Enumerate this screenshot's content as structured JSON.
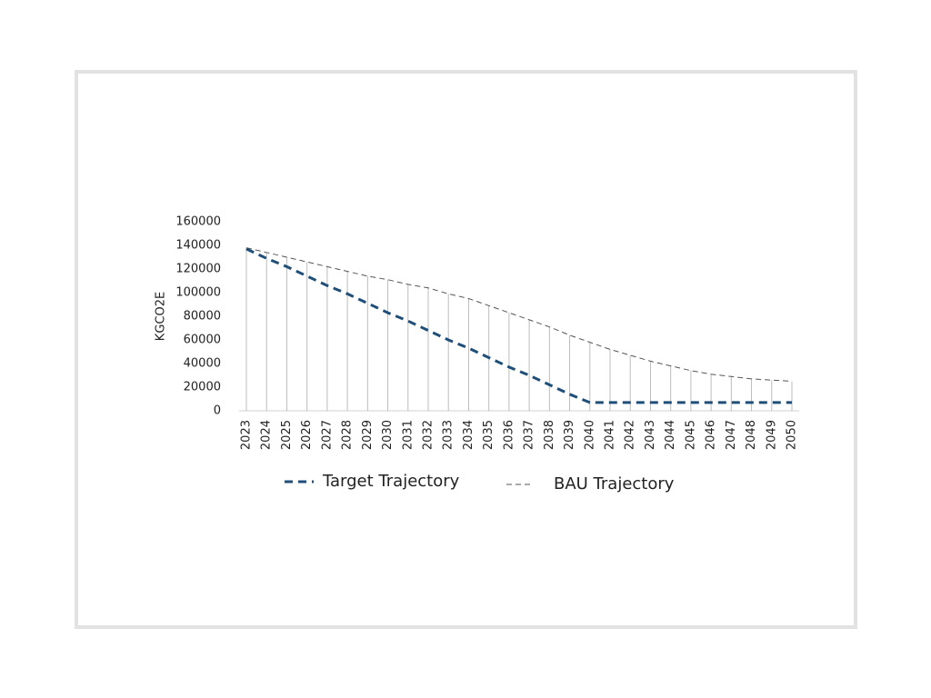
{
  "chart_data": {
    "type": "line",
    "y_label": "KGCO2E",
    "categories": [
      "2023",
      "2024",
      "2025",
      "2026",
      "2027",
      "2028",
      "2029",
      "2030",
      "2031",
      "2032",
      "2033",
      "2034",
      "2035",
      "2036",
      "2037",
      "2038",
      "2039",
      "2040",
      "2041",
      "2042",
      "2043",
      "2044",
      "2045",
      "2046",
      "2047",
      "2048",
      "2049",
      "2050"
    ],
    "series": [
      {
        "name": "Target Trajectory",
        "color": "#1f4e79",
        "values": [
          137000,
          129000,
          122000,
          114000,
          106000,
          99000,
          91000,
          83000,
          76000,
          68000,
          60000,
          53000,
          45000,
          37000,
          30000,
          22000,
          14000,
          7000,
          7000,
          7000,
          7000,
          7000,
          7000,
          7000,
          7000,
          7000,
          7000,
          7000
        ]
      },
      {
        "name": "BAU Trajectory",
        "color": "#555555",
        "values": [
          138000,
          134000,
          130000,
          126000,
          122000,
          118000,
          114000,
          111000,
          107000,
          104000,
          99000,
          95000,
          89000,
          83000,
          77000,
          71000,
          64000,
          58000,
          52000,
          47000,
          42000,
          38000,
          34000,
          31000,
          29000,
          27000,
          26000,
          25000
        ]
      }
    ],
    "ylim": [
      0,
      160000
    ],
    "yticks": [
      0,
      20000,
      40000,
      60000,
      80000,
      100000,
      120000,
      140000,
      160000
    ],
    "drop_lines": true
  }
}
